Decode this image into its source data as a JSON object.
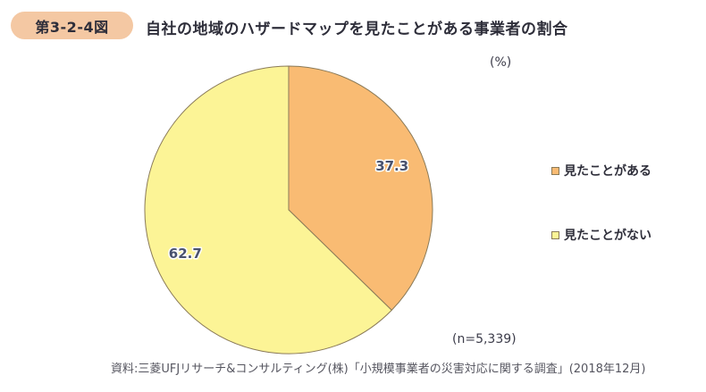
{
  "header": {
    "figure_label": "第3-2-4図",
    "title": "自社の地域のハザードマップを見たことがある事業者の割合"
  },
  "chart_data": {
    "type": "pie",
    "title": "自社の地域のハザードマップを見たことがある事業者の割合",
    "unit_label": "(%)",
    "sample_label": "(n=5,339)",
    "start_angle_deg": 0,
    "direction": "clockwise",
    "legend_position": "right",
    "slices": [
      {
        "label": "見たことがある",
        "value": 37.3,
        "color": "#F9BB73",
        "border_color": "#8A7A58"
      },
      {
        "label": "見たことがない",
        "value": 62.7,
        "color": "#FCF496",
        "border_color": "#8A7A58"
      }
    ],
    "value_label_color": "#49526E"
  },
  "source": "資料:三菱UFJリサーチ&コンサルティング(株)「小規模事業者の災害対応に関する調査」(2018年12月)"
}
